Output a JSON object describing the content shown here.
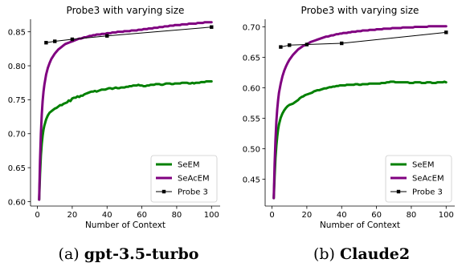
{
  "chart_data": [
    {
      "type": "line",
      "title": "Probe3 with varying size",
      "xlabel": "Number of Context",
      "ylabel": "",
      "xlim": [
        -3.95,
        104.95
      ],
      "ylim": [
        0.5935,
        0.8685
      ],
      "xticks": [
        0,
        20,
        40,
        60,
        80,
        100
      ],
      "yticks": [
        0.6,
        0.65,
        0.7,
        0.75,
        0.8,
        0.85
      ],
      "ytick_labels": [
        "0.60",
        "0.65",
        "0.70",
        "0.75",
        "0.80",
        "0.85"
      ],
      "legend": {
        "placement": "lower-right",
        "entries": [
          "SeEM",
          "SeAcEM",
          "Probe 3"
        ]
      },
      "grid": false,
      "series": [
        {
          "name": "SeEM",
          "color": "#008000",
          "marker": "none",
          "x": [
            1,
            1.5,
            2,
            2.5,
            3,
            3.5,
            4,
            5,
            6,
            7,
            8,
            9,
            10,
            11,
            12,
            13,
            14,
            15,
            16,
            17,
            18,
            19,
            20,
            21,
            22,
            23,
            24,
            25,
            26,
            27,
            28,
            29,
            30,
            31,
            32,
            33,
            34,
            35,
            36,
            37,
            38,
            39,
            40,
            41,
            42,
            43,
            44,
            45,
            46,
            47,
            48,
            49,
            50,
            51,
            52,
            53,
            54,
            55,
            56,
            57,
            58,
            59,
            60,
            61,
            62,
            63,
            64,
            65,
            66,
            67,
            68,
            69,
            70,
            71,
            72,
            73,
            74,
            75,
            76,
            77,
            78,
            79,
            80,
            81,
            82,
            83,
            84,
            85,
            86,
            87,
            88,
            89,
            90,
            91,
            92,
            93,
            94,
            95,
            96,
            97,
            98,
            99,
            100
          ],
          "y": [
            0.603,
            0.64,
            0.668,
            0.685,
            0.697,
            0.706,
            0.712,
            0.721,
            0.727,
            0.731,
            0.733,
            0.735,
            0.737,
            0.738,
            0.74,
            0.742,
            0.742,
            0.744,
            0.745,
            0.746,
            0.749,
            0.748,
            0.752,
            0.753,
            0.753,
            0.755,
            0.754,
            0.756,
            0.756,
            0.758,
            0.759,
            0.76,
            0.761,
            0.762,
            0.762,
            0.763,
            0.762,
            0.763,
            0.764,
            0.765,
            0.765,
            0.765,
            0.766,
            0.767,
            0.767,
            0.766,
            0.767,
            0.768,
            0.767,
            0.767,
            0.768,
            0.768,
            0.768,
            0.769,
            0.769,
            0.77,
            0.77,
            0.771,
            0.771,
            0.771,
            0.772,
            0.771,
            0.771,
            0.77,
            0.77,
            0.771,
            0.771,
            0.772,
            0.772,
            0.772,
            0.773,
            0.773,
            0.773,
            0.772,
            0.772,
            0.773,
            0.774,
            0.774,
            0.774,
            0.773,
            0.773,
            0.774,
            0.774,
            0.774,
            0.774,
            0.775,
            0.775,
            0.775,
            0.775,
            0.774,
            0.774,
            0.775,
            0.774,
            0.775,
            0.775,
            0.775,
            0.776,
            0.776,
            0.776,
            0.777,
            0.777,
            0.777,
            0.777
          ]
        },
        {
          "name": "SeAcEM",
          "color": "#800080",
          "marker": "none",
          "x": [
            1,
            1.5,
            2,
            2.5,
            3,
            3.5,
            4,
            5,
            6,
            7,
            8,
            9,
            10,
            11,
            12,
            13,
            14,
            15,
            16,
            17,
            18,
            19,
            20,
            21,
            22,
            23,
            24,
            25,
            26,
            27,
            28,
            29,
            30,
            31,
            32,
            33,
            34,
            35,
            36,
            37,
            38,
            39,
            40,
            41,
            42,
            43,
            44,
            45,
            46,
            47,
            48,
            49,
            50,
            51,
            52,
            53,
            54,
            55,
            56,
            57,
            58,
            59,
            60,
            61,
            62,
            63,
            64,
            65,
            66,
            67,
            68,
            69,
            70,
            71,
            72,
            73,
            74,
            75,
            76,
            77,
            78,
            79,
            80,
            81,
            82,
            83,
            84,
            85,
            86,
            87,
            88,
            89,
            90,
            91,
            92,
            93,
            94,
            95,
            96,
            97,
            98,
            99,
            100
          ],
          "y": [
            0.603,
            0.66,
            0.7,
            0.728,
            0.748,
            0.762,
            0.772,
            0.787,
            0.797,
            0.804,
            0.81,
            0.814,
            0.818,
            0.821,
            0.824,
            0.826,
            0.828,
            0.83,
            0.832,
            0.833,
            0.834,
            0.835,
            0.836,
            0.837,
            0.838,
            0.839,
            0.84,
            0.84,
            0.841,
            0.842,
            0.842,
            0.843,
            0.844,
            0.844,
            0.845,
            0.845,
            0.846,
            0.846,
            0.846,
            0.847,
            0.847,
            0.847,
            0.848,
            0.848,
            0.848,
            0.849,
            0.849,
            0.849,
            0.85,
            0.85,
            0.85,
            0.85,
            0.851,
            0.851,
            0.851,
            0.851,
            0.852,
            0.852,
            0.852,
            0.852,
            0.853,
            0.853,
            0.853,
            0.854,
            0.854,
            0.854,
            0.855,
            0.855,
            0.855,
            0.856,
            0.856,
            0.856,
            0.857,
            0.857,
            0.857,
            0.858,
            0.858,
            0.858,
            0.859,
            0.859,
            0.859,
            0.86,
            0.86,
            0.86,
            0.86,
            0.861,
            0.861,
            0.861,
            0.861,
            0.862,
            0.862,
            0.862,
            0.862,
            0.862,
            0.863,
            0.863,
            0.863,
            0.863,
            0.864,
            0.864,
            0.864,
            0.864,
            0.864
          ]
        },
        {
          "name": "Probe 3",
          "color": "#000000",
          "marker": "square",
          "x": [
            5,
            10,
            20,
            40,
            100
          ],
          "y": [
            0.834,
            0.836,
            0.839,
            0.844,
            0.857
          ]
        }
      ]
    },
    {
      "type": "line",
      "title": "Probe3 with varying size",
      "xlabel": "Number of Context",
      "ylabel": "",
      "xlim": [
        -3.95,
        104.95
      ],
      "ylim": [
        0.406,
        0.7125
      ],
      "xticks": [
        0,
        20,
        40,
        60,
        80,
        100
      ],
      "yticks": [
        0.45,
        0.5,
        0.55,
        0.6,
        0.65,
        0.7
      ],
      "ytick_labels": [
        "0.45",
        "0.50",
        "0.55",
        "0.60",
        "0.65",
        "0.70"
      ],
      "legend": {
        "placement": "lower-right",
        "entries": [
          "SeEM",
          "SeAcEM",
          "Probe 3"
        ]
      },
      "grid": false,
      "series": [
        {
          "name": "SeEM",
          "color": "#008000",
          "marker": "none",
          "x": [
            1,
            1.5,
            2,
            2.5,
            3,
            3.5,
            4,
            5,
            6,
            7,
            8,
            9,
            10,
            11,
            12,
            13,
            14,
            15,
            16,
            17,
            18,
            19,
            20,
            21,
            22,
            23,
            24,
            25,
            26,
            27,
            28,
            29,
            30,
            31,
            32,
            33,
            34,
            35,
            36,
            37,
            38,
            39,
            40,
            41,
            42,
            43,
            44,
            45,
            46,
            47,
            48,
            49,
            50,
            51,
            52,
            53,
            54,
            55,
            56,
            57,
            58,
            59,
            60,
            61,
            62,
            63,
            64,
            65,
            66,
            67,
            68,
            69,
            70,
            71,
            72,
            73,
            74,
            75,
            76,
            77,
            78,
            79,
            80,
            81,
            82,
            83,
            84,
            85,
            86,
            87,
            88,
            89,
            90,
            91,
            92,
            93,
            94,
            95,
            96,
            97,
            98,
            99,
            100
          ],
          "y": [
            0.419,
            0.455,
            0.485,
            0.505,
            0.52,
            0.532,
            0.54,
            0.551,
            0.558,
            0.563,
            0.567,
            0.57,
            0.572,
            0.573,
            0.574,
            0.576,
            0.578,
            0.58,
            0.583,
            0.585,
            0.586,
            0.588,
            0.589,
            0.59,
            0.591,
            0.592,
            0.594,
            0.595,
            0.596,
            0.596,
            0.597,
            0.598,
            0.599,
            0.599,
            0.6,
            0.601,
            0.601,
            0.602,
            0.602,
            0.603,
            0.603,
            0.604,
            0.604,
            0.604,
            0.604,
            0.605,
            0.605,
            0.605,
            0.605,
            0.605,
            0.606,
            0.606,
            0.605,
            0.605,
            0.606,
            0.606,
            0.606,
            0.606,
            0.607,
            0.607,
            0.607,
            0.607,
            0.607,
            0.607,
            0.607,
            0.608,
            0.608,
            0.608,
            0.609,
            0.609,
            0.61,
            0.61,
            0.61,
            0.609,
            0.609,
            0.609,
            0.609,
            0.609,
            0.609,
            0.609,
            0.609,
            0.608,
            0.608,
            0.608,
            0.609,
            0.609,
            0.609,
            0.609,
            0.608,
            0.608,
            0.608,
            0.609,
            0.609,
            0.609,
            0.608,
            0.608,
            0.608,
            0.609,
            0.609,
            0.609,
            0.609,
            0.61,
            0.609
          ]
        },
        {
          "name": "SeAcEM",
          "color": "#800080",
          "marker": "none",
          "x": [
            1,
            1.5,
            2,
            2.5,
            3,
            3.5,
            4,
            5,
            6,
            7,
            8,
            9,
            10,
            11,
            12,
            13,
            14,
            15,
            16,
            17,
            18,
            19,
            20,
            21,
            22,
            23,
            24,
            25,
            26,
            27,
            28,
            29,
            30,
            31,
            32,
            33,
            34,
            35,
            36,
            37,
            38,
            39,
            40,
            41,
            42,
            43,
            44,
            45,
            46,
            47,
            48,
            49,
            50,
            51,
            52,
            53,
            54,
            55,
            56,
            57,
            58,
            59,
            60,
            61,
            62,
            63,
            64,
            65,
            66,
            67,
            68,
            69,
            70,
            71,
            72,
            73,
            74,
            75,
            76,
            77,
            78,
            79,
            80,
            81,
            82,
            83,
            84,
            85,
            86,
            87,
            88,
            89,
            90,
            91,
            92,
            93,
            94,
            95,
            96,
            97,
            98,
            99,
            100
          ],
          "y": [
            0.419,
            0.475,
            0.515,
            0.545,
            0.565,
            0.58,
            0.592,
            0.607,
            0.619,
            0.628,
            0.635,
            0.641,
            0.646,
            0.65,
            0.654,
            0.657,
            0.66,
            0.663,
            0.665,
            0.667,
            0.669,
            0.67,
            0.672,
            0.673,
            0.675,
            0.676,
            0.677,
            0.678,
            0.679,
            0.68,
            0.681,
            0.682,
            0.683,
            0.684,
            0.684,
            0.685,
            0.686,
            0.686,
            0.687,
            0.688,
            0.688,
            0.689,
            0.689,
            0.69,
            0.69,
            0.69,
            0.691,
            0.691,
            0.692,
            0.692,
            0.692,
            0.693,
            0.693,
            0.693,
            0.694,
            0.694,
            0.694,
            0.694,
            0.695,
            0.695,
            0.695,
            0.695,
            0.696,
            0.696,
            0.696,
            0.696,
            0.697,
            0.697,
            0.697,
            0.697,
            0.697,
            0.698,
            0.698,
            0.698,
            0.698,
            0.698,
            0.698,
            0.699,
            0.699,
            0.699,
            0.699,
            0.699,
            0.699,
            0.699,
            0.7,
            0.7,
            0.7,
            0.7,
            0.7,
            0.7,
            0.7,
            0.7,
            0.701,
            0.701,
            0.701,
            0.701,
            0.701,
            0.701,
            0.701,
            0.701,
            0.701,
            0.701,
            0.701
          ]
        },
        {
          "name": "Probe 3",
          "color": "#000000",
          "marker": "square",
          "x": [
            5,
            10,
            20,
            40,
            100
          ],
          "y": [
            0.667,
            0.67,
            0.671,
            0.673,
            0.691
          ]
        }
      ]
    }
  ],
  "captions": [
    {
      "label": "(a)",
      "model": "gpt-3.5-turbo"
    },
    {
      "label": "(b)",
      "model": "Claude2"
    }
  ]
}
